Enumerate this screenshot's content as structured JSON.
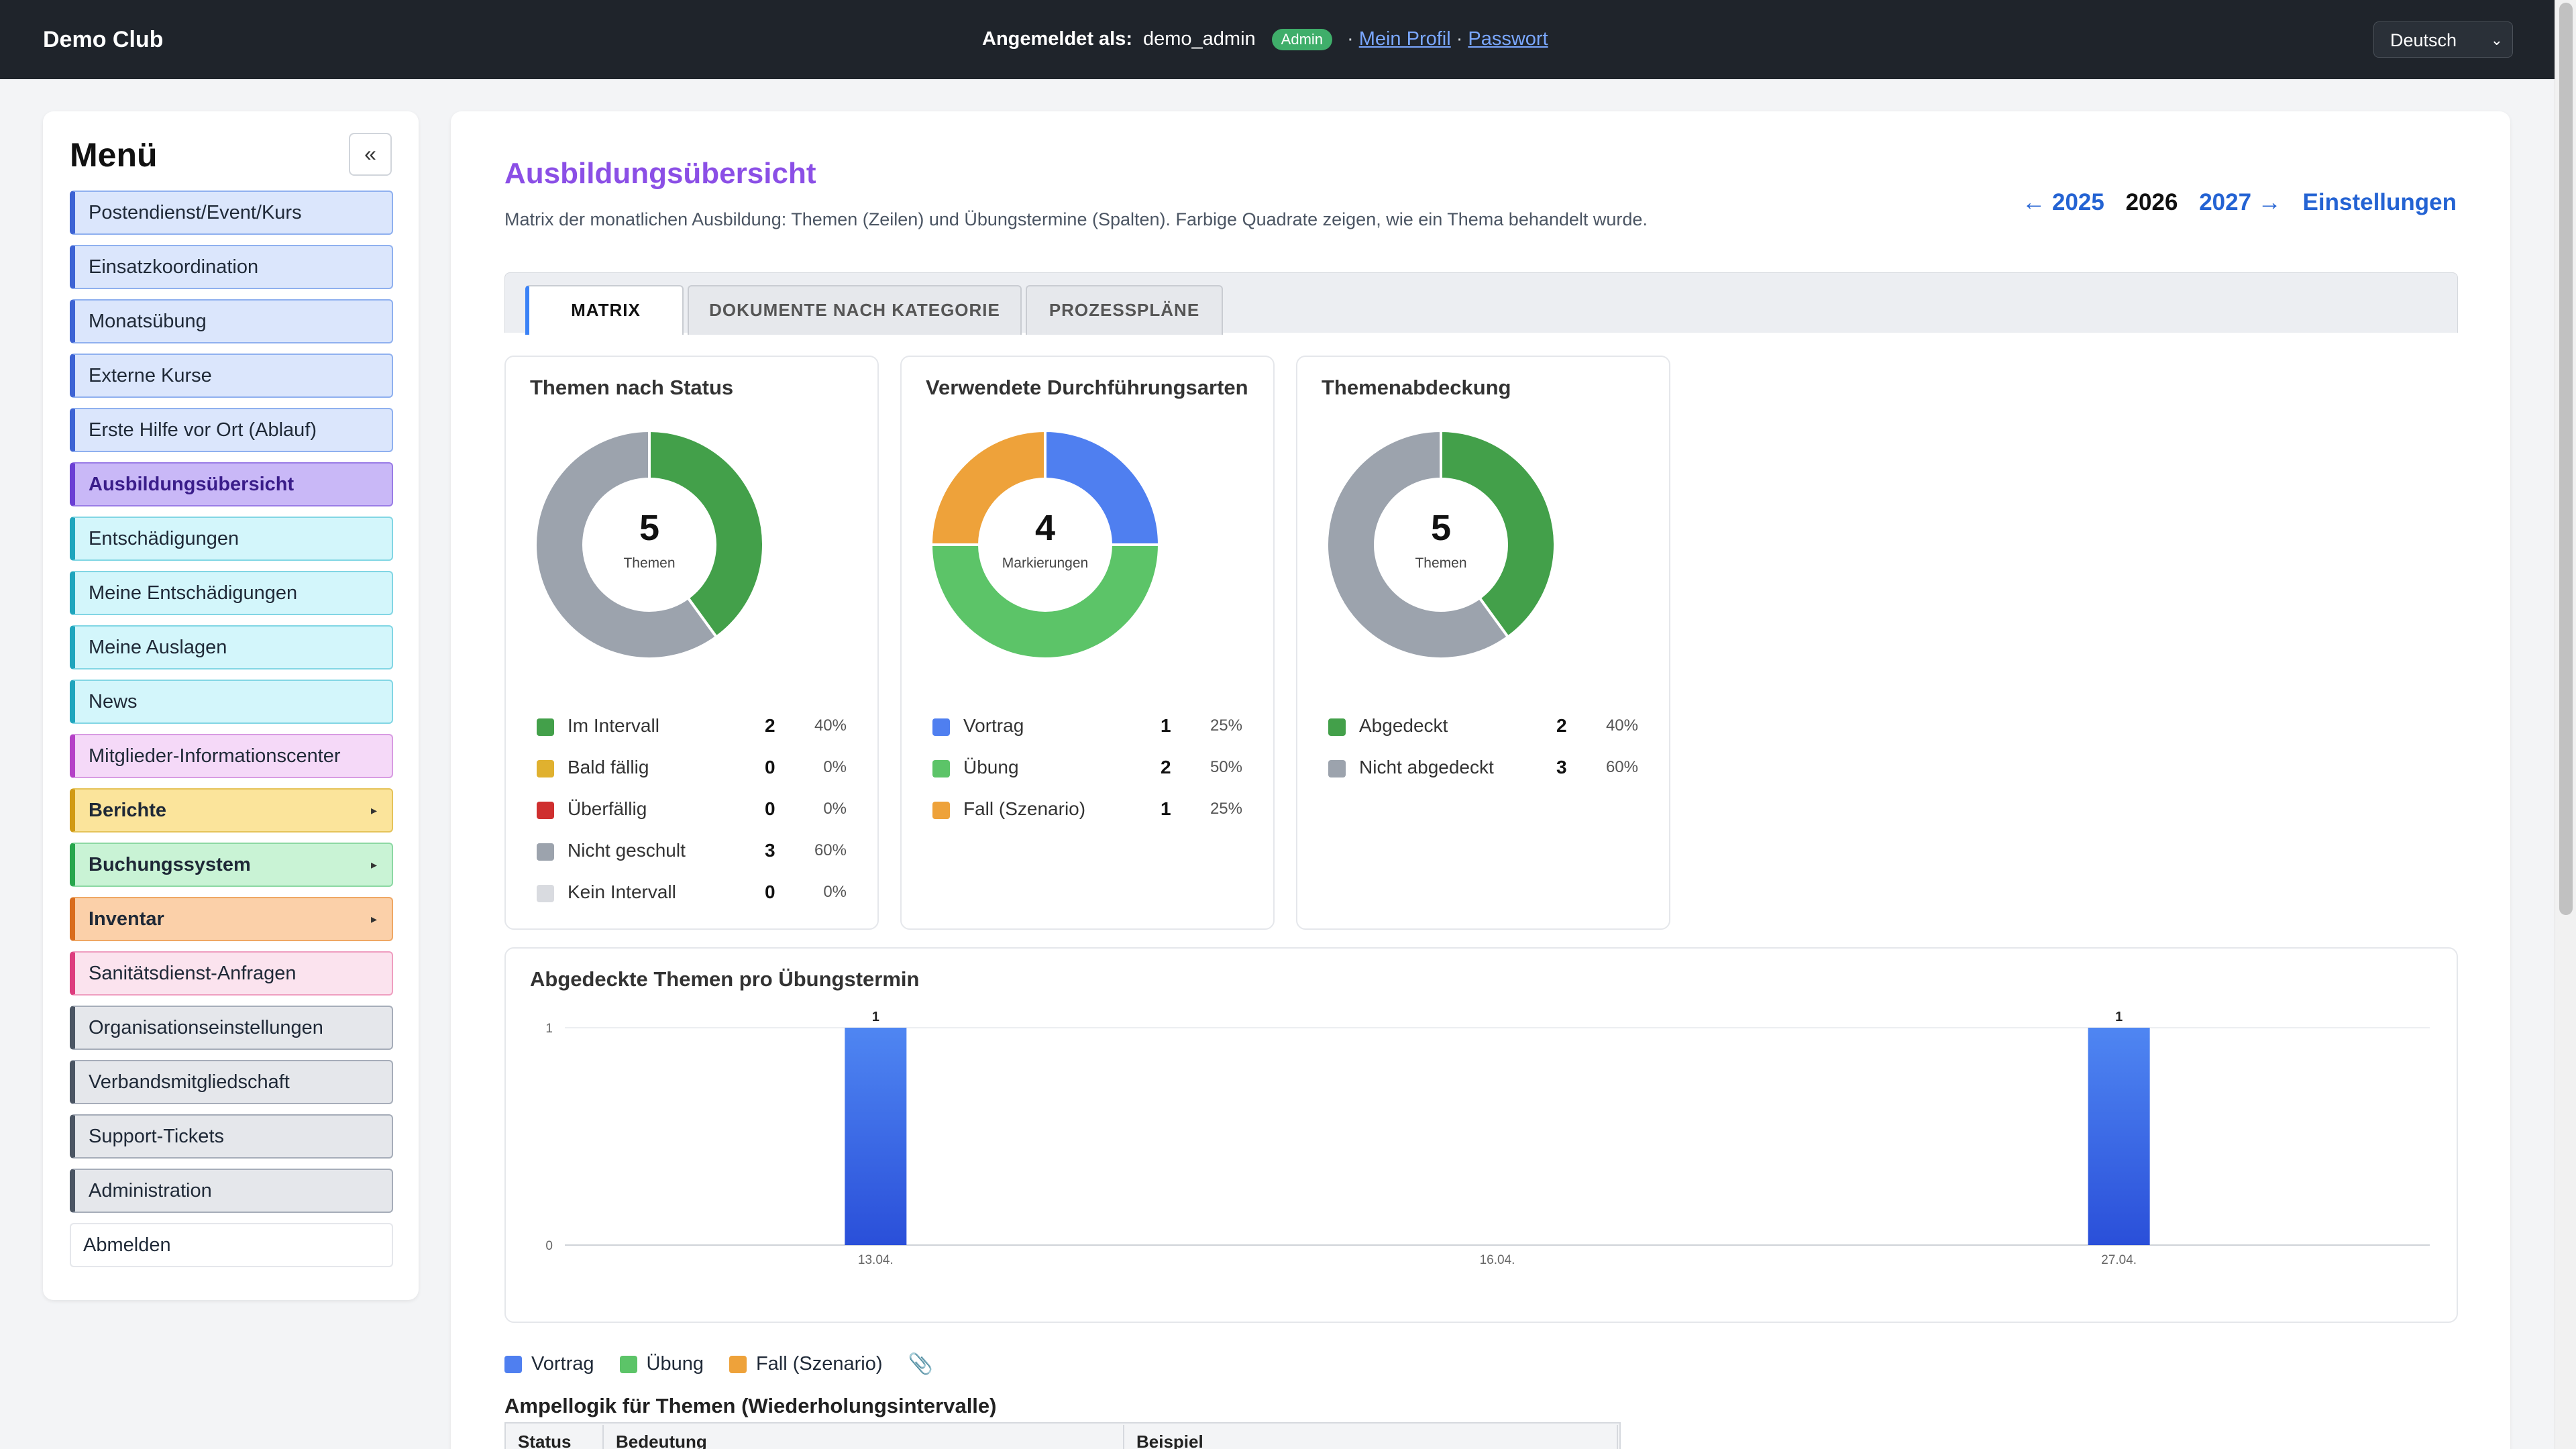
{
  "header": {
    "brand": "Demo Club",
    "logged_in_label": "Angemeldet als:",
    "username": "demo_admin",
    "role_badge": "Admin",
    "profile_link": "Mein Profil",
    "password_link": "Passwort",
    "separator": "·",
    "language": "Deutsch"
  },
  "sidebar": {
    "title": "Menü",
    "collapse_label": "«",
    "items": [
      {
        "label": "Postendienst/Event/Kurs",
        "color": "#3d63d4"
      },
      {
        "label": "Einsatzkoordination",
        "color": "#3d63d4"
      },
      {
        "label": "Monatsübung",
        "color": "#3d63d4"
      },
      {
        "label": "Externe Kurse",
        "color": "#3d63d4"
      },
      {
        "label": "Erste Hilfe vor Ort (Ablauf)",
        "color": "#3d63d4"
      },
      {
        "label": "Ausbildungsübersicht",
        "color": "#6b3fd4",
        "active": true
      },
      {
        "label": "Entschädigungen",
        "color": "#1fa5bd"
      },
      {
        "label": "Meine Entschädigungen",
        "color": "#1fa5bd"
      },
      {
        "label": "Meine Auslagen",
        "color": "#1fa5bd"
      },
      {
        "label": "News",
        "color": "#1fa5bd"
      },
      {
        "label": "Mitglieder-Informationscenter",
        "color": "#b541c7"
      },
      {
        "label": "Berichte",
        "color": "#d19a13",
        "submenu_arrow": "▸"
      },
      {
        "label": "Buchungssystem",
        "color": "#27a64c",
        "submenu_arrow": "▸"
      },
      {
        "label": "Inventar",
        "color": "#d96c1c",
        "submenu_arrow": "▸"
      },
      {
        "label": "Sanitätsdienst-Anfragen",
        "color": "#dd3d7e"
      },
      {
        "label": "Organisationseinstellungen",
        "color": "#4b5563"
      },
      {
        "label": "Verbandsmitgliedschaft",
        "color": "#4b5563"
      },
      {
        "label": "Support-Tickets",
        "color": "#4b5563"
      },
      {
        "label": "Administration",
        "color": "#4b5563"
      },
      {
        "label": "Abmelden",
        "color": "#e5e7eb"
      }
    ]
  },
  "main": {
    "title": "Ausbildungsübersicht",
    "description": "Matrix der monatlichen Ausbildung: Themen (Zeilen) und Übungstermine (Spalten). Farbige Quadrate zeigen, wie ein Thema behandelt wurde.",
    "year_nav": {
      "prev": "← 2025",
      "current": "2026",
      "next": "2027 →",
      "settings": "Einstellungen"
    },
    "tabs": [
      "MATRIX",
      "DOKUMENTE NACH KATEGORIE",
      "PROZESSPLÄNE"
    ],
    "bottom_legend": [
      {
        "label": "Vortrag",
        "color": "#4f7ff0"
      },
      {
        "label": "Übung",
        "color": "#5cc468"
      },
      {
        "label": "Fall (Szenario)",
        "color": "#eea23a"
      }
    ],
    "attachment_icon": "paperclip-icon",
    "ampel_title": "Ampellogik für Themen (Wiederholungsintervalle)",
    "ampel_columns": [
      "Status",
      "Bedeutung",
      "Beispiel"
    ]
  },
  "cards": [
    {
      "title": "Themen nach Status",
      "total": "5",
      "total_label": "Themen",
      "items": [
        {
          "label": "Im Intervall",
          "count": 2,
          "pct": "40%",
          "color": "#43a04a"
        },
        {
          "label": "Bald fällig",
          "count": 0,
          "pct": "0%",
          "color": "#e0b12f"
        },
        {
          "label": "Überfällig",
          "count": 0,
          "pct": "0%",
          "color": "#cf2f2f"
        },
        {
          "label": "Nicht geschult",
          "count": 3,
          "pct": "60%",
          "color": "#9ca3ad"
        },
        {
          "label": "Kein Intervall",
          "count": 0,
          "pct": "0%",
          "color": "#d9dbe0"
        }
      ]
    },
    {
      "title": "Verwendete Durchführungsarten",
      "total": "4",
      "total_label": "Markierungen",
      "items": [
        {
          "label": "Vortrag",
          "count": 1,
          "pct": "25%",
          "color": "#4f7ff0"
        },
        {
          "label": "Übung",
          "count": 2,
          "pct": "50%",
          "color": "#5cc468"
        },
        {
          "label": "Fall (Szenario)",
          "count": 1,
          "pct": "25%",
          "color": "#eea23a"
        }
      ]
    },
    {
      "title": "Themenabdeckung",
      "total": "5",
      "total_label": "Themen",
      "items": [
        {
          "label": "Abgedeckt",
          "count": 2,
          "pct": "40%",
          "color": "#43a04a"
        },
        {
          "label": "Nicht abgedeckt",
          "count": 3,
          "pct": "60%",
          "color": "#9ca3ad"
        }
      ]
    }
  ],
  "chart_data": {
    "type": "bar",
    "title": "Abgedeckte Themen pro Übungstermin",
    "categories": [
      "13.04.",
      "16.04.",
      "27.04."
    ],
    "values": [
      1,
      0,
      1
    ],
    "ylim": [
      0,
      1
    ],
    "yticks": [
      0,
      1
    ],
    "grid": true,
    "color": "#3f6fe8"
  }
}
